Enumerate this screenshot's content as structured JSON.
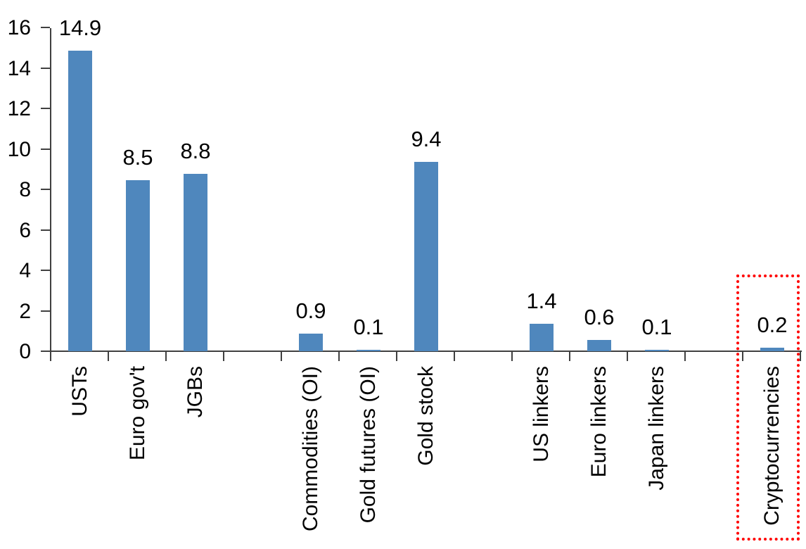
{
  "chart_data": {
    "type": "bar",
    "title": "",
    "xlabel": "",
    "ylabel": "",
    "categories": [
      "USTs",
      "Euro gov't",
      "JGBs",
      "Commodities (OI)",
      "Gold futures (OI)",
      "Gold stock",
      "US linkers",
      "Euro linkers",
      "Japan linkers",
      "Cryptocurrencies"
    ],
    "values": [
      14.9,
      8.5,
      8.8,
      0.9,
      0.1,
      9.4,
      1.4,
      0.6,
      0.1,
      0.2
    ],
    "value_labels": [
      "14.9",
      "8.5",
      "8.8",
      "0.9",
      "0.1",
      "9.4",
      "1.4",
      "0.6",
      "0.1",
      "0.2"
    ],
    "slots": [
      0,
      1,
      2,
      4,
      5,
      6,
      8,
      9,
      10,
      12
    ],
    "total_slots": 13,
    "y_ticks": [
      0,
      2,
      4,
      6,
      8,
      10,
      12,
      14,
      16
    ],
    "ylim": [
      0,
      16
    ],
    "grid": false,
    "legend": null,
    "bar_color": "#4f87bd",
    "axis_color": "#404040",
    "text_color": "#000000",
    "highlight": {
      "category": "Cryptocurrencies",
      "style": "red-dotted-box",
      "color": "#ff0000"
    }
  }
}
